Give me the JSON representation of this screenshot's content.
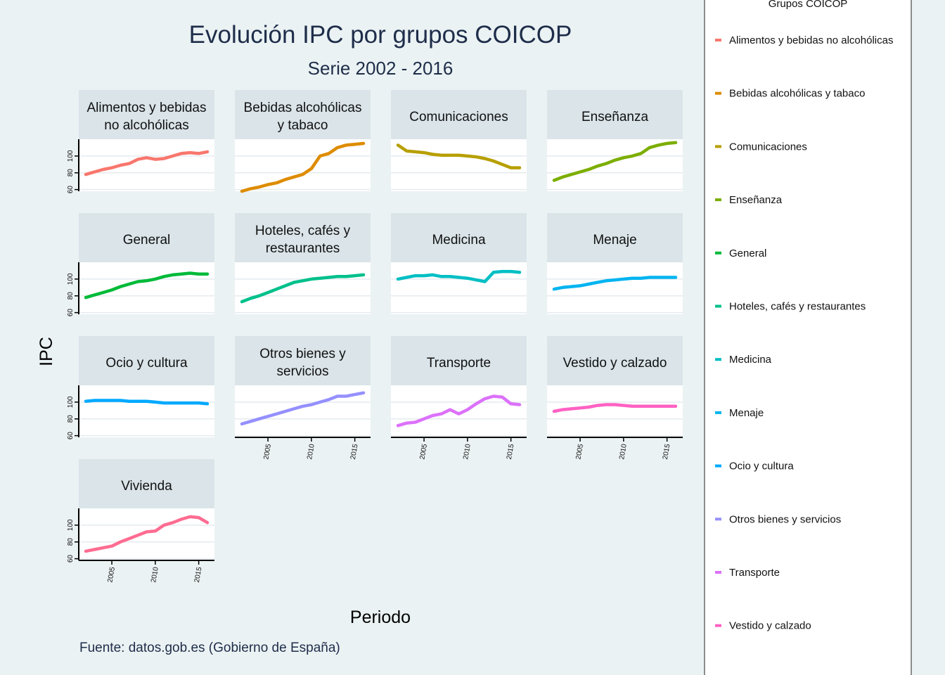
{
  "chart_data": {
    "type": "line",
    "title": "Evolución IPC por grupos COICOP",
    "subtitle": "Serie 2002 - 2016",
    "xlabel": "Periodo",
    "ylabel": "IPC",
    "caption": "Fuente: datos.gob.es (Gobierno de España)",
    "legend_title": "Grupos COICOP",
    "legend_position": "right",
    "x_ticks": [
      "2005",
      "2010",
      "2015"
    ],
    "y_ticks": [
      "60",
      "80",
      "100"
    ],
    "xlim": [
      2002,
      2016
    ],
    "ylim": [
      58,
      120
    ],
    "x": [
      2002,
      2003,
      2004,
      2005,
      2006,
      2007,
      2008,
      2009,
      2010,
      2011,
      2012,
      2013,
      2014,
      2015,
      2016
    ],
    "series": [
      {
        "name": "Alimentos y bebidas no alcohólicas",
        "strip": [
          "Alimentos y bebidas",
          "no alcohólicas"
        ],
        "color": "#F8766D",
        "values": [
          78,
          81,
          84,
          86,
          89,
          91,
          96,
          98,
          96,
          97,
          100,
          103,
          104,
          103,
          105
        ]
      },
      {
        "name": "Bebidas alcohólicas y tabaco",
        "strip": [
          "Bebidas alcohólicas",
          "y tabaco"
        ],
        "color": "#DE8C00",
        "values": [
          58,
          61,
          63,
          66,
          68,
          72,
          75,
          78,
          85,
          100,
          103,
          110,
          113,
          114,
          115
        ]
      },
      {
        "name": "Comunicaciones",
        "strip": [
          "Comunicaciones"
        ],
        "color": "#B79F00",
        "values": [
          113,
          106,
          105,
          104,
          102,
          101,
          101,
          101,
          100,
          99,
          97,
          94,
          90,
          86,
          86
        ]
      },
      {
        "name": "Enseñanza",
        "strip": [
          "Enseñanza"
        ],
        "color": "#7CAE00",
        "values": [
          71,
          75,
          78,
          81,
          84,
          88,
          91,
          95,
          98,
          100,
          103,
          110,
          113,
          115,
          116
        ]
      },
      {
        "name": "General",
        "strip": [
          "General"
        ],
        "color": "#00BA38",
        "values": [
          78,
          81,
          84,
          87,
          91,
          94,
          97,
          98,
          100,
          103,
          105,
          106,
          107,
          106,
          106
        ]
      },
      {
        "name": "Hoteles, cafés y restaurantes",
        "strip": [
          "Hoteles, cafés y",
          "restaurantes"
        ],
        "color": "#00C08B",
        "values": [
          73,
          77,
          80,
          84,
          88,
          92,
          96,
          98,
          100,
          101,
          102,
          103,
          103,
          104,
          105
        ]
      },
      {
        "name": "Medicina",
        "strip": [
          "Medicina"
        ],
        "color": "#00BFC4",
        "values": [
          100,
          102,
          104,
          104,
          105,
          103,
          103,
          102,
          101,
          99,
          97,
          108,
          109,
          109,
          108
        ]
      },
      {
        "name": "Menaje",
        "strip": [
          "Menaje"
        ],
        "color": "#00B4F0",
        "values": [
          88,
          90,
          91,
          92,
          94,
          96,
          98,
          99,
          100,
          101,
          101,
          102,
          102,
          102,
          102
        ]
      },
      {
        "name": "Ocio y cultura",
        "strip": [
          "Ocio y cultura"
        ],
        "color": "#00A9FF",
        "values": [
          101,
          102,
          102,
          102,
          102,
          101,
          101,
          101,
          100,
          99,
          99,
          99,
          99,
          99,
          98
        ]
      },
      {
        "name": "Otros bienes y servicios",
        "strip": [
          "Otros bienes y",
          "servicios"
        ],
        "color": "#9590FF",
        "values": [
          74,
          77,
          80,
          83,
          86,
          89,
          92,
          95,
          97,
          100,
          103,
          107,
          107,
          109,
          111
        ]
      },
      {
        "name": "Transporte",
        "strip": [
          "Transporte"
        ],
        "color": "#DC71FA",
        "values": [
          72,
          75,
          76,
          80,
          84,
          86,
          91,
          86,
          91,
          98,
          104,
          107,
          106,
          98,
          97
        ]
      },
      {
        "name": "Vestido y calzado",
        "strip": [
          "Vestido y calzado"
        ],
        "color": "#FF61C3",
        "values": [
          89,
          91,
          92,
          93,
          94,
          96,
          97,
          97,
          96,
          95,
          95,
          95,
          95,
          95,
          95
        ]
      },
      {
        "name": "Vivienda",
        "strip": [
          "Vivienda"
        ],
        "color": "#FF6C91",
        "values": [
          69,
          71,
          73,
          75,
          80,
          84,
          88,
          92,
          93,
          100,
          103,
          107,
          110,
          109,
          103
        ]
      }
    ]
  }
}
